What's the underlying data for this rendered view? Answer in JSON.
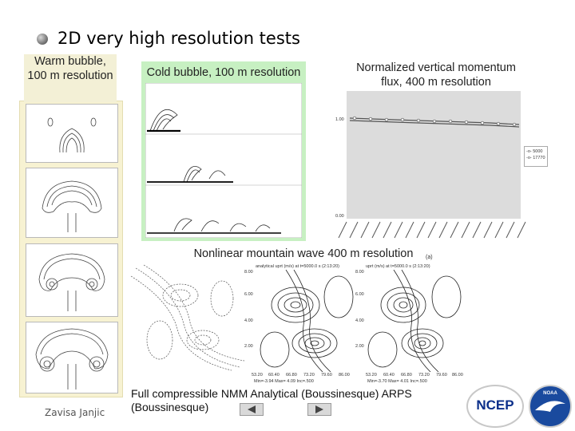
{
  "slide": {
    "title": "2D very high resolution tests",
    "author": "Zavisa Janjic"
  },
  "warm_bubble": {
    "caption": "Warm bubble, 100 m resolution"
  },
  "cold_bubble": {
    "caption": "Cold bubble, 100 m resolution"
  },
  "momentum_flux": {
    "caption": "Normalized vertical momentum flux, 400 m resolution",
    "y_top_label": "1.00",
    "y_bottom_label": "0.00",
    "legend": [
      "5000",
      "17770"
    ]
  },
  "mountain_wave": {
    "caption": "Nonlinear mountain wave 400 m resolution",
    "panel_b_title": "analytical uprt (m/s) at t=5000.0 s (2:13:20)",
    "panel_c_title": "uprt (m/s) at t=5000.0 s (2:13:20)",
    "panel_c_tag": "(a)",
    "y_ticks": [
      "8.00",
      "6.00",
      "4.00",
      "2.00"
    ],
    "x_ticks": [
      "53.20",
      "60.40",
      "66.80",
      "73.20",
      "79.60",
      "86.00"
    ],
    "panel_b_stats": "Min=-3.94   Max= 4.09   Inc=.500",
    "panel_c_stats": "Min=-3.70   Max= 4.01   Inc=.500"
  },
  "bottom_caption": {
    "line1": "Full compressible NMM   Analytical (Boussinesque)  ARPS",
    "line2": "(Boussinesque)"
  },
  "nav": {
    "prev_icon": "triangle-left-icon",
    "next_icon": "triangle-right-icon"
  },
  "logos": {
    "ncep": "NCEP",
    "noaa": "NOAA"
  }
}
